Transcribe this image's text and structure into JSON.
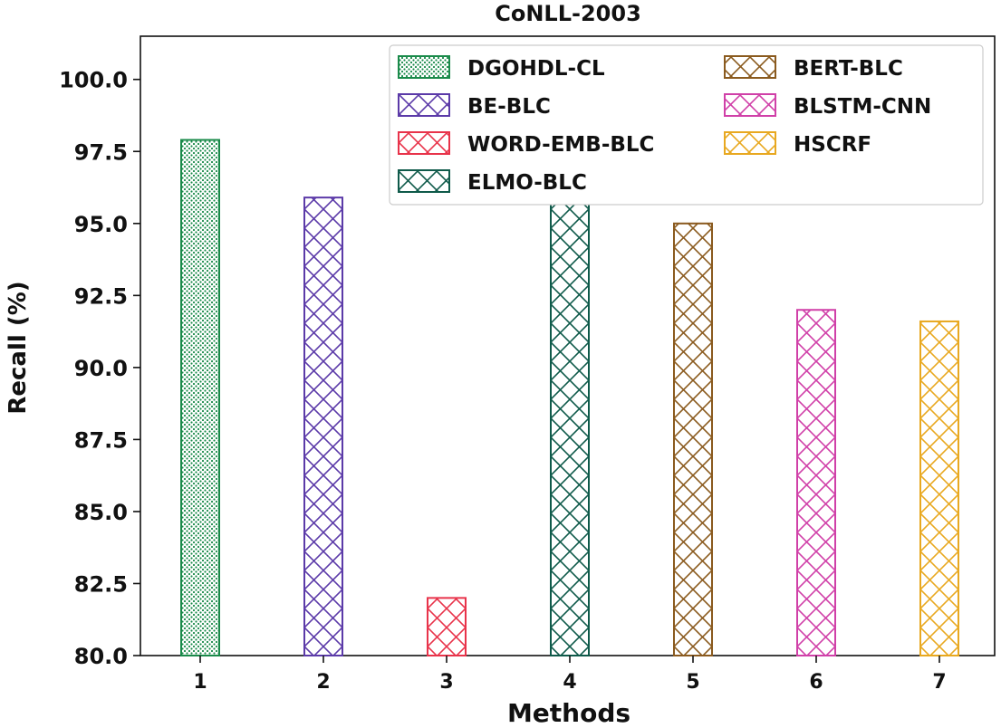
{
  "chart_data": {
    "type": "bar",
    "title": "CoNLL-2003",
    "xlabel": "Methods",
    "ylabel": "Recall (%)",
    "ylim": [
      80.0,
      101.5
    ],
    "yticks": [
      "80.0",
      "82.5",
      "85.0",
      "87.5",
      "90.0",
      "92.5",
      "95.0",
      "97.5",
      "100.0"
    ],
    "categories": [
      "1",
      "2",
      "3",
      "4",
      "5",
      "6",
      "7"
    ],
    "series": [
      {
        "name": "DGOHDL-CL",
        "x": "1",
        "value": 97.9,
        "color": "#1a8a4a",
        "hatch": "dots"
      },
      {
        "name": "BE-BLC",
        "x": "2",
        "value": 95.9,
        "color": "#5b3aa8",
        "hatch": "cross"
      },
      {
        "name": "WORD-EMB-BLC",
        "x": "3",
        "value": 82.0,
        "color": "#e8334a",
        "hatch": "cross"
      },
      {
        "name": "ELMO-BLC",
        "x": "4",
        "value": 95.7,
        "color": "#0f5a4a",
        "hatch": "cross"
      },
      {
        "name": "BERT-BLC",
        "x": "5",
        "value": 95.0,
        "color": "#8a5a1e",
        "hatch": "cross"
      },
      {
        "name": "BLSTM-CNN",
        "x": "6",
        "value": 92.0,
        "color": "#d040a8",
        "hatch": "cross"
      },
      {
        "name": "HSCRF",
        "x": "7",
        "value": 91.6,
        "color": "#e8a820",
        "hatch": "cross"
      }
    ],
    "legend": {
      "placement": "top-right",
      "columns": [
        [
          "DGOHDL-CL",
          "BE-BLC",
          "WORD-EMB-BLC",
          "ELMO-BLC"
        ],
        [
          "BERT-BLC",
          "BLSTM-CNN",
          "HSCRF"
        ]
      ]
    },
    "grid": false
  }
}
